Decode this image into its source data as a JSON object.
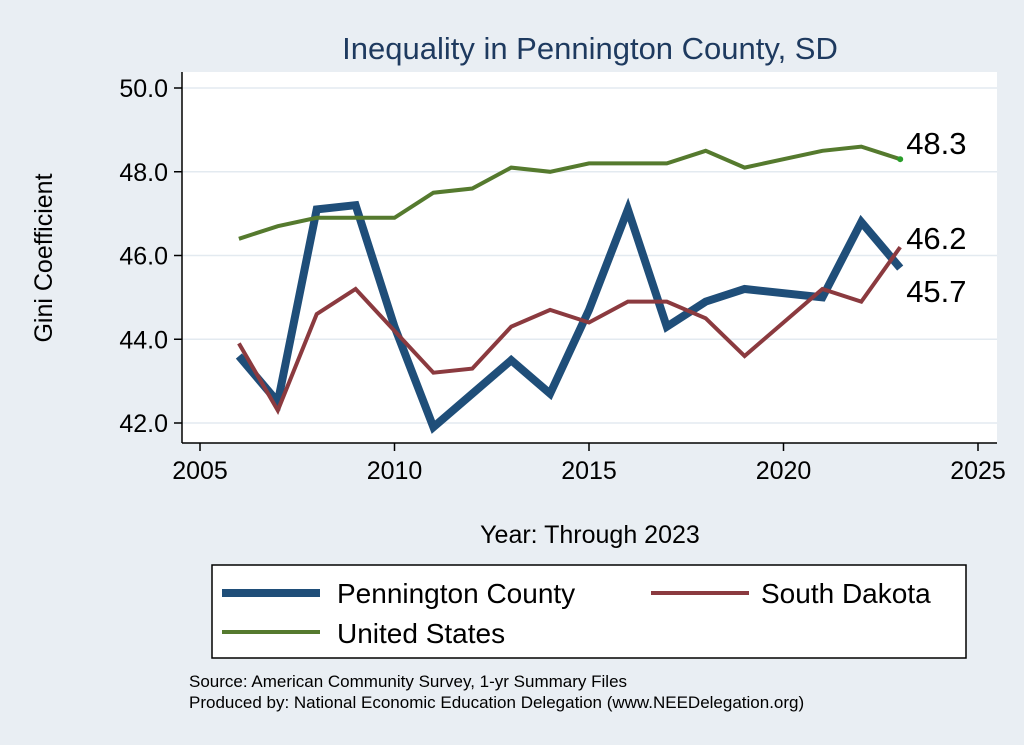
{
  "chart_data": {
    "type": "line",
    "title": "Inequality in Pennington County, SD",
    "xlabel": "Year: Through 2023",
    "ylabel": "Gini Coefficient",
    "xlim": [
      2005,
      2025
    ],
    "ylim": [
      42,
      50
    ],
    "x_ticks": [
      "2005",
      "2010",
      "2015",
      "2020",
      "2025"
    ],
    "y_ticks": [
      "42.0",
      "44.0",
      "46.0",
      "48.0",
      "50.0"
    ],
    "grid": true,
    "legend_position": "bottom",
    "series": [
      {
        "name": "Pennington County",
        "color": "#1f4e79",
        "x": [
          2006,
          2007,
          2008,
          2009,
          2010,
          2011,
          2012,
          2013,
          2014,
          2015,
          2016,
          2017,
          2018,
          2019,
          2021,
          2022,
          2023
        ],
        "values": [
          43.6,
          42.5,
          47.1,
          47.2,
          44.3,
          41.9,
          42.7,
          43.5,
          42.7,
          44.7,
          47.1,
          44.3,
          44.9,
          45.2,
          45.0,
          46.8,
          45.7
        ],
        "end_label": "45.7"
      },
      {
        "name": "South Dakota",
        "color": "#8b3a3f",
        "x": [
          2006,
          2007,
          2008,
          2009,
          2010,
          2011,
          2012,
          2013,
          2014,
          2015,
          2016,
          2017,
          2018,
          2019,
          2021,
          2022,
          2023
        ],
        "values": [
          43.9,
          42.3,
          44.6,
          45.2,
          44.2,
          43.2,
          43.3,
          44.3,
          44.7,
          44.4,
          44.9,
          44.9,
          44.5,
          43.6,
          45.2,
          44.9,
          46.2
        ],
        "end_label": "46.2"
      },
      {
        "name": "United States",
        "color": "#557a2e",
        "x": [
          2006,
          2007,
          2008,
          2009,
          2010,
          2011,
          2012,
          2013,
          2014,
          2015,
          2016,
          2017,
          2018,
          2019,
          2021,
          2022,
          2023
        ],
        "values": [
          46.4,
          46.7,
          46.9,
          46.9,
          46.9,
          47.5,
          47.6,
          48.1,
          48.0,
          48.2,
          48.2,
          48.2,
          48.5,
          48.1,
          48.5,
          48.6,
          48.3
        ],
        "end_label": "48.3"
      }
    ],
    "source_note": "Source: American Community Survey, 1-yr Summary Files",
    "producer_note": "Produced by: National Economic Education Delegation (www.NEEDelegation.org)"
  }
}
